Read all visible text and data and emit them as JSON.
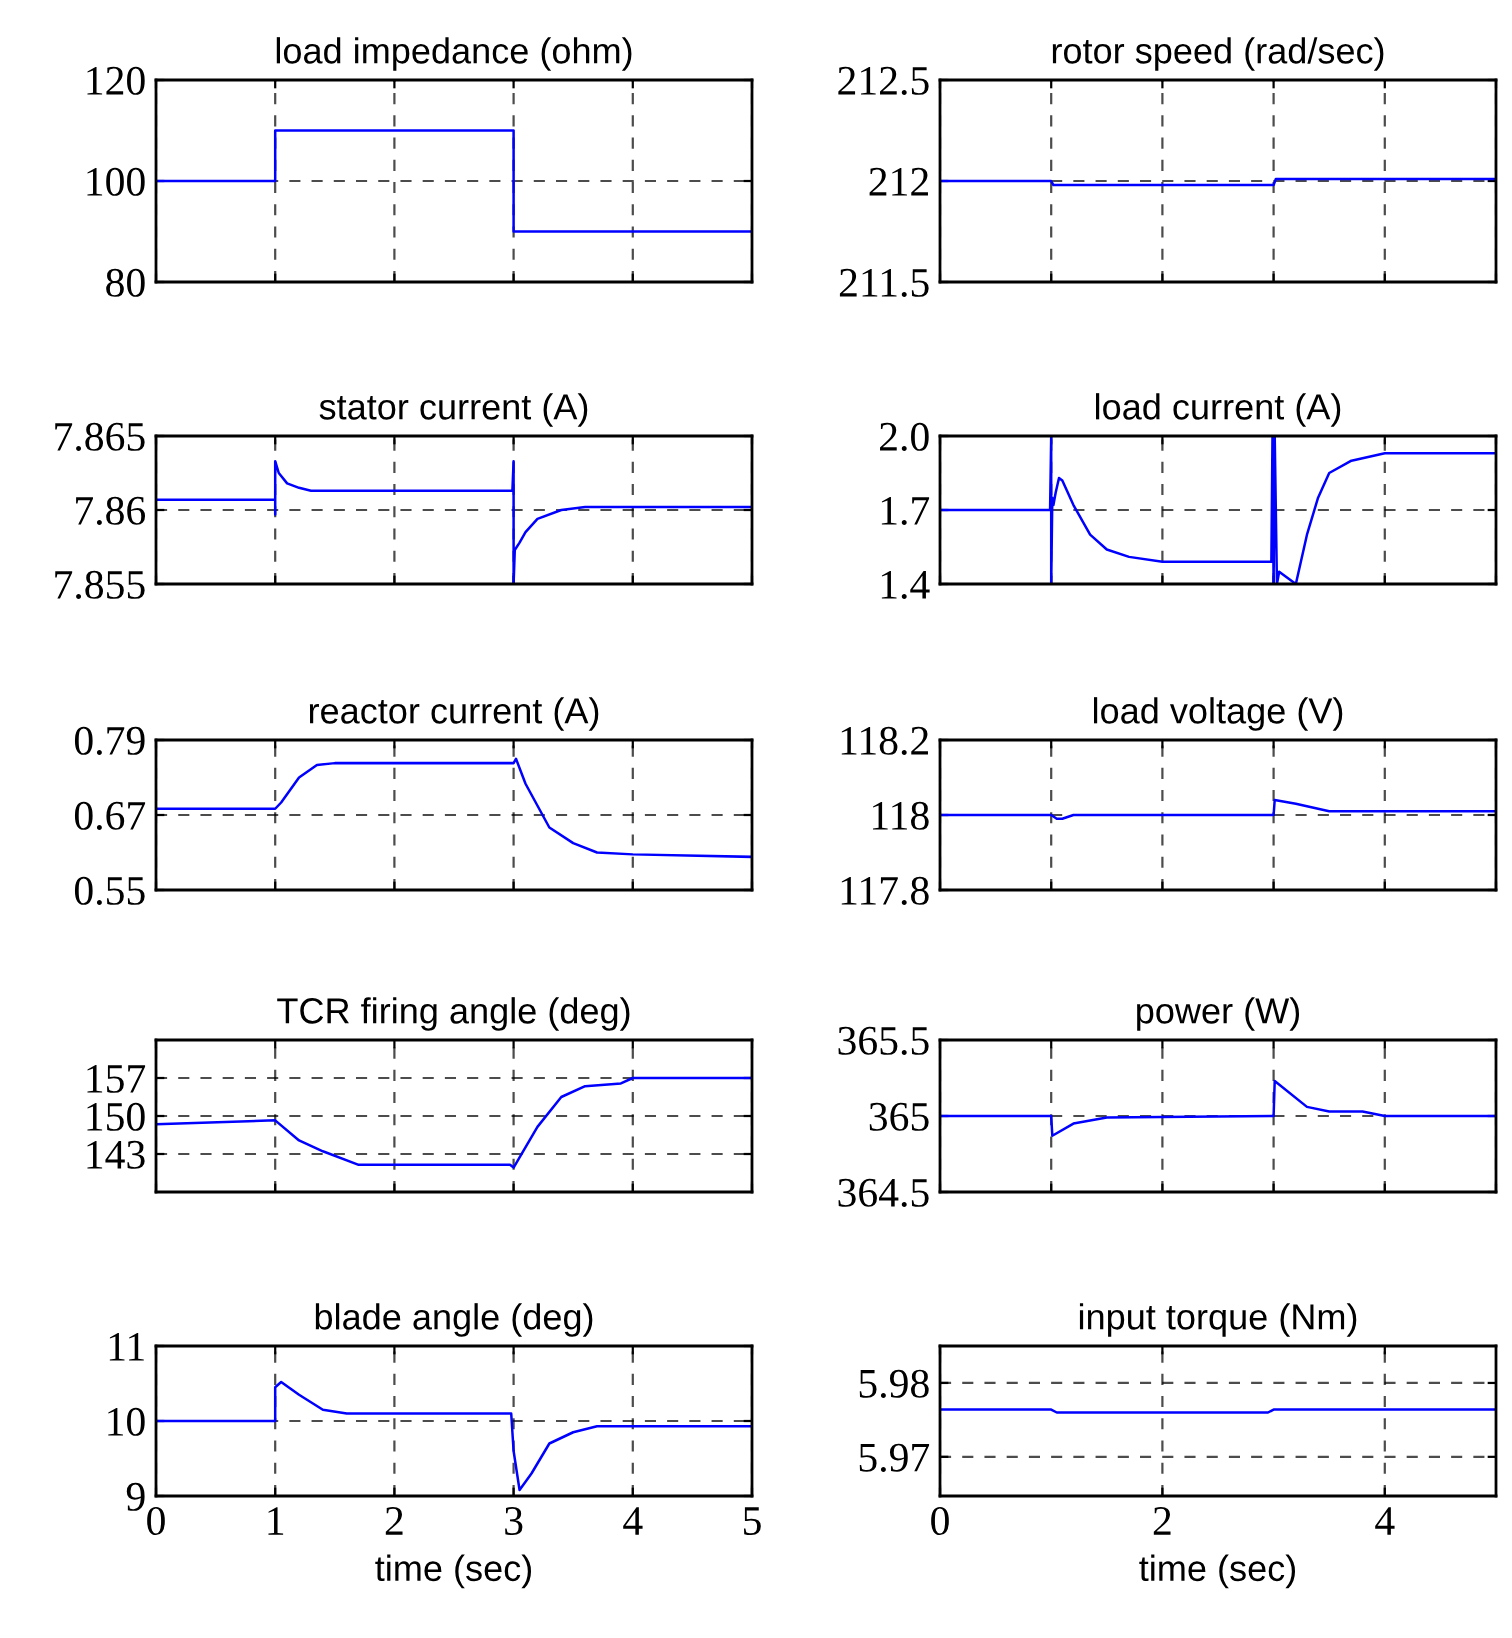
{
  "chart_data": [
    {
      "type": "line",
      "title": "load impedance (ohm)",
      "x": [
        0,
        1,
        1,
        3,
        3,
        5
      ],
      "series": [
        {
          "color": "#0000ff",
          "values": [
            100,
            100,
            110,
            110,
            90,
            90
          ]
        }
      ],
      "xlim": [
        0,
        5
      ],
      "xticks": [
        0,
        1,
        2,
        3,
        4,
        5
      ],
      "ylim": [
        80,
        120
      ],
      "yticks": [
        80,
        100,
        120
      ],
      "grid": true,
      "tick_labels": "y"
    },
    {
      "type": "line",
      "title": "rotor speed (rad/sec)",
      "x": [
        0,
        1,
        1.02,
        3,
        3.02,
        5
      ],
      "series": [
        {
          "color": "#0000ff",
          "values": [
            212,
            212,
            211.98,
            211.98,
            212.01,
            212.01
          ]
        }
      ],
      "xlim": [
        0,
        5
      ],
      "xticks": [
        0,
        1,
        2,
        3,
        4,
        5
      ],
      "ylim": [
        211.5,
        212.5
      ],
      "yticks": [
        211.5,
        212,
        212.5
      ],
      "grid": true,
      "tick_labels": "y"
    },
    {
      "type": "line",
      "title": "stator current (A)",
      "x": [
        0,
        1,
        1,
        1,
        1.03,
        1.1,
        1.2,
        1.3,
        2,
        2.99,
        3,
        3,
        3.01,
        3.05,
        3.1,
        3.2,
        3.4,
        3.6,
        4,
        5
      ],
      "series": [
        {
          "color": "#0000ff",
          "values": [
            7.8607,
            7.8607,
            7.8597,
            7.8633,
            7.8625,
            7.8618,
            7.8615,
            7.8613,
            7.8613,
            7.8613,
            7.8633,
            7.855,
            7.8573,
            7.8578,
            7.8585,
            7.8594,
            7.86,
            7.8602,
            7.8602,
            7.8602
          ]
        }
      ],
      "xlim": [
        0,
        5
      ],
      "xticks": [
        0,
        1,
        2,
        3,
        4,
        5
      ],
      "ylim": [
        7.855,
        7.865
      ],
      "yticks": [
        7.855,
        {
          "value": 7.86,
          "label": "7.86"
        },
        7.865
      ],
      "grid": true,
      "tick_labels": "y"
    },
    {
      "type": "line",
      "title": "load current (A)",
      "x": [
        0,
        0.99,
        1,
        1,
        1.01,
        1.02,
        1.04,
        1.07,
        1.1,
        1.2,
        1.35,
        1.5,
        1.7,
        2,
        2.98,
        2.99,
        3,
        3.01,
        3.03,
        3.05,
        3.2,
        3.3,
        3.4,
        3.5,
        3.7,
        3.9,
        4,
        5
      ],
      "series": [
        {
          "color": "#0000ff",
          "values": [
            1.7,
            1.7,
            2.0,
            1.4,
            1.75,
            1.72,
            1.77,
            1.83,
            1.82,
            1.72,
            1.6,
            1.54,
            1.51,
            1.49,
            1.49,
            2.0,
            1.4,
            2.0,
            1.4,
            1.45,
            1.4,
            1.6,
            1.75,
            1.85,
            1.9,
            1.92,
            1.93,
            1.93
          ]
        }
      ],
      "xlim": [
        0,
        5
      ],
      "xticks": [
        0,
        1,
        2,
        3,
        4,
        5
      ],
      "ylim": [
        1.4,
        2.0
      ],
      "yticks": [
        {
          "value": 1.4,
          "label": "1.4"
        },
        {
          "value": 1.7,
          "label": "1.7"
        },
        {
          "value": 2.0,
          "label": "2.0"
        }
      ],
      "grid": true,
      "tick_labels": "y"
    },
    {
      "type": "line",
      "title": "reactor current (A)",
      "x": [
        0,
        1,
        1.05,
        1.2,
        1.35,
        1.5,
        3,
        3.02,
        3.1,
        3.3,
        3.5,
        3.7,
        4,
        5
      ],
      "series": [
        {
          "color": "#0000ff",
          "values": [
            0.68,
            0.68,
            0.69,
            0.73,
            0.75,
            0.753,
            0.753,
            0.76,
            0.72,
            0.65,
            0.625,
            0.61,
            0.607,
            0.603
          ]
        }
      ],
      "xlim": [
        0,
        5
      ],
      "xticks": [
        0,
        1,
        2,
        3,
        4,
        5
      ],
      "ylim": [
        0.55,
        0.79
      ],
      "yticks": [
        0.55,
        0.67,
        0.79
      ],
      "grid": true,
      "tick_labels": "y"
    },
    {
      "type": "line",
      "title": "load voltage (V)",
      "x": [
        0,
        1,
        1.05,
        1.1,
        1.2,
        3,
        3.01,
        3.2,
        3.5,
        5
      ],
      "series": [
        {
          "color": "#0000ff",
          "values": [
            118,
            118,
            117.99,
            117.99,
            118,
            118,
            118.04,
            118.03,
            118.01,
            118.01
          ]
        }
      ],
      "xlim": [
        0,
        5
      ],
      "xticks": [
        0,
        1,
        2,
        3,
        4,
        5
      ],
      "ylim": [
        117.8,
        118.2
      ],
      "yticks": [
        117.8,
        118,
        118.2
      ],
      "grid": true,
      "tick_labels": "y"
    },
    {
      "type": "line",
      "title": "TCR firing angle (deg)",
      "x": [
        0,
        1,
        1.2,
        1.4,
        1.7,
        2.97,
        3,
        3.2,
        3.4,
        3.6,
        3.9,
        4,
        5
      ],
      "series": [
        {
          "color": "#0000ff",
          "values": [
            148.5,
            149.2,
            145.5,
            143.5,
            141,
            141,
            140.5,
            148,
            153.5,
            155.5,
            156,
            157,
            157
          ]
        }
      ],
      "xlim": [
        0,
        5
      ],
      "xticks": [
        0,
        1,
        2,
        3,
        4,
        5
      ],
      "ylim": [
        136,
        164
      ],
      "yticks": [
        143,
        150,
        157
      ],
      "grid": true,
      "tick_labels": "y"
    },
    {
      "type": "line",
      "title": "power (W)",
      "x": [
        0,
        1,
        1.01,
        1.2,
        1.5,
        3,
        3.01,
        3.3,
        3.5,
        3.8,
        4,
        5
      ],
      "series": [
        {
          "color": "#0000ff",
          "values": [
            365,
            365,
            364.87,
            364.95,
            364.99,
            365,
            365.23,
            365.06,
            365.03,
            365.03,
            365,
            365
          ]
        }
      ],
      "xlim": [
        0,
        5
      ],
      "xticks": [
        0,
        1,
        2,
        3,
        4,
        5
      ],
      "ylim": [
        364.5,
        365.5
      ],
      "yticks": [
        364.5,
        365,
        365.5
      ],
      "grid": true,
      "tick_labels": "y"
    },
    {
      "type": "line",
      "title": "blade angle (deg)",
      "xlabel": "time (sec)",
      "x": [
        0,
        1,
        1,
        1.05,
        1.2,
        1.4,
        1.6,
        2.98,
        3,
        3.05,
        3.15,
        3.3,
        3.5,
        3.7,
        5
      ],
      "series": [
        {
          "color": "#0000ff",
          "values": [
            10,
            10,
            10.45,
            10.52,
            10.35,
            10.15,
            10.1,
            10.1,
            9.6,
            9.08,
            9.3,
            9.7,
            9.85,
            9.93,
            9.93
          ]
        }
      ],
      "xlim": [
        0,
        5
      ],
      "xticks": [
        0,
        1,
        2,
        3,
        4,
        5
      ],
      "ylim": [
        9,
        11
      ],
      "yticks": [
        9,
        10,
        11
      ],
      "grid": true
    },
    {
      "type": "line",
      "title": "input torque (Nm)",
      "xlabel": "time (sec)",
      "x": [
        0,
        1,
        1.05,
        2.95,
        3,
        5
      ],
      "series": [
        {
          "color": "#0000ff",
          "values": [
            5.9764,
            5.9764,
            5.976,
            5.976,
            5.9764,
            5.9764
          ]
        }
      ],
      "xlim": [
        0,
        5
      ],
      "xticks": [
        0,
        2,
        4
      ],
      "ylim": [
        5.9647,
        5.985
      ],
      "yticks": [
        5.97,
        5.98
      ],
      "grid": true
    }
  ]
}
